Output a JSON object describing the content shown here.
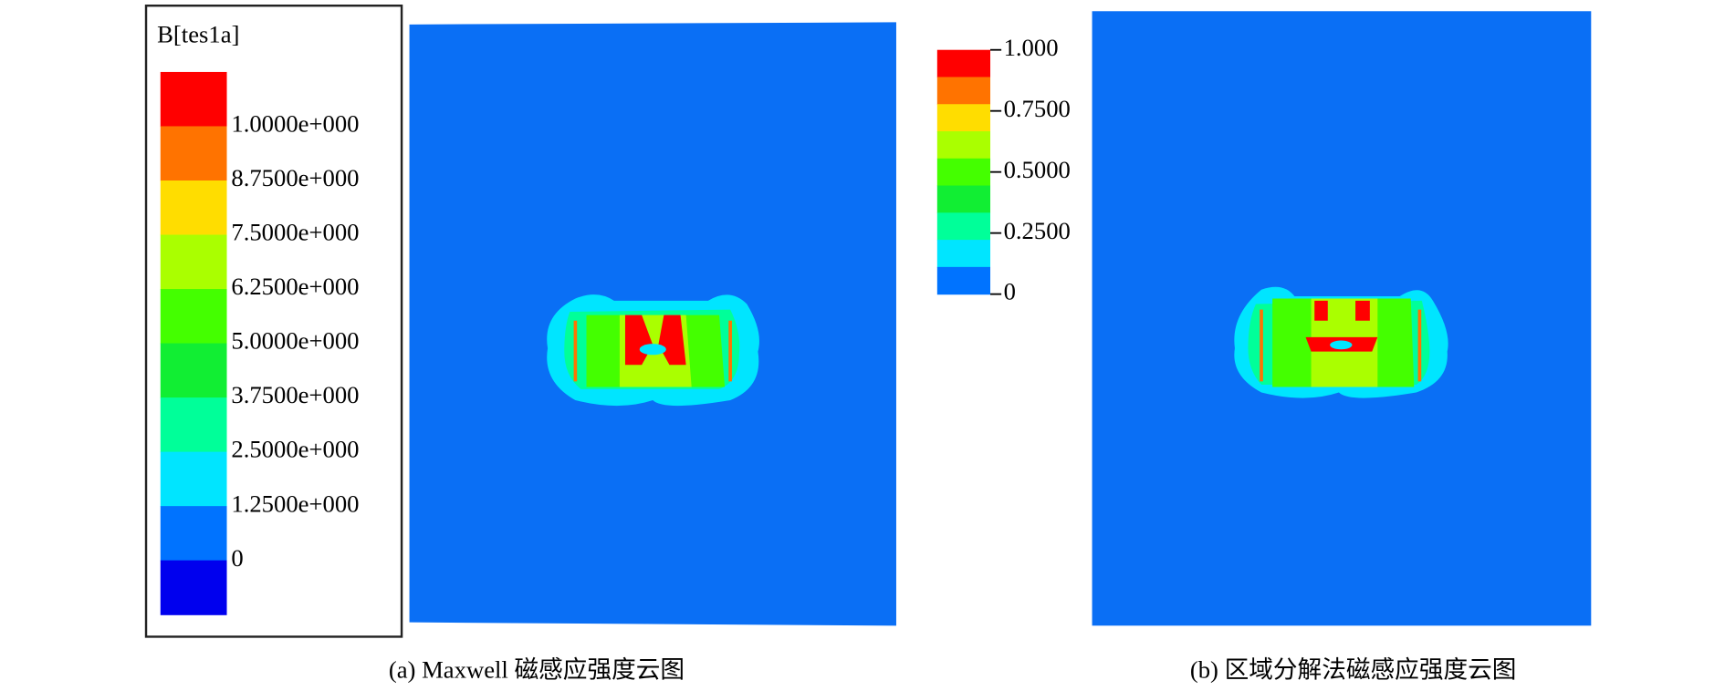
{
  "panel_a": {
    "legend_title": "B[tes1a]",
    "legend_labels": [
      "1.0000e+000",
      "8.7500e+000",
      "7.5000e+000",
      "6.2500e+000",
      "5.0000e+000",
      "3.7500e+000",
      "2.5000e+000",
      "1.2500e+000",
      "0"
    ],
    "colors": [
      "#ff0000",
      "#ff7300",
      "#ffdd00",
      "#aaff00",
      "#44ff00",
      "#11ee33",
      "#00ff99",
      "#00e5ff",
      "#0073ff",
      "#0000ee"
    ],
    "caption": "(a) Maxwell 磁感应强度云图"
  },
  "panel_b": {
    "colorbar_labels": [
      "1.000",
      "0.7500",
      "0.5000",
      "0.2500",
      "0"
    ],
    "colors": [
      "#ff0000",
      "#ff7300",
      "#ffdd00",
      "#aaff00",
      "#44ff00",
      "#11ee33",
      "#00ff99",
      "#00e5ff",
      "#0073ff"
    ],
    "caption": "(b) 区域分解法磁感应强度云图"
  }
}
